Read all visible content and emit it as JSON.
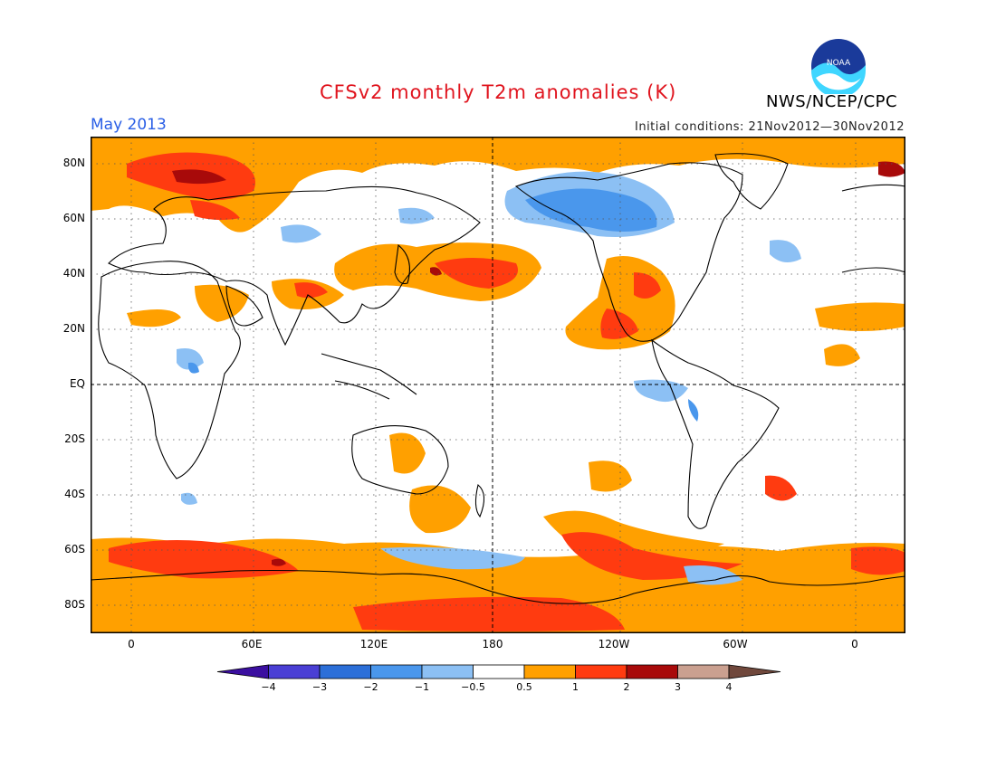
{
  "header": {
    "title": "CFSv2 monthly T2m anomalies (K)",
    "month": "May 2013",
    "initial_conditions": "Initial conditions: 21Nov2012—30Nov2012",
    "agency": "NWS/NCEP/CPC",
    "logo_text": "NOAA"
  },
  "map": {
    "projection": "equirectangular, centered 180",
    "lat_labels": [
      "80N",
      "60N",
      "40N",
      "20N",
      "EQ",
      "20S",
      "40S",
      "60S",
      "80S"
    ],
    "lon_labels": [
      "0",
      "60E",
      "120E",
      "180",
      "120W",
      "60W",
      "0"
    ],
    "field": "2m temperature anomaly, monthly mean forecast",
    "units": "K"
  },
  "legend": {
    "labels": [
      "−4",
      "−3",
      "−2",
      "−1",
      "−0.5",
      "0.5",
      "1",
      "2",
      "3",
      "4"
    ],
    "colors": [
      "#3b0fa0",
      "#4a3fd4",
      "#2c6fd8",
      "#4a97ec",
      "#8cc0f4",
      "#ffffff",
      "#ffa000",
      "#ff3b10",
      "#a80a0a",
      "#caa090",
      "#70483c"
    ]
  }
}
